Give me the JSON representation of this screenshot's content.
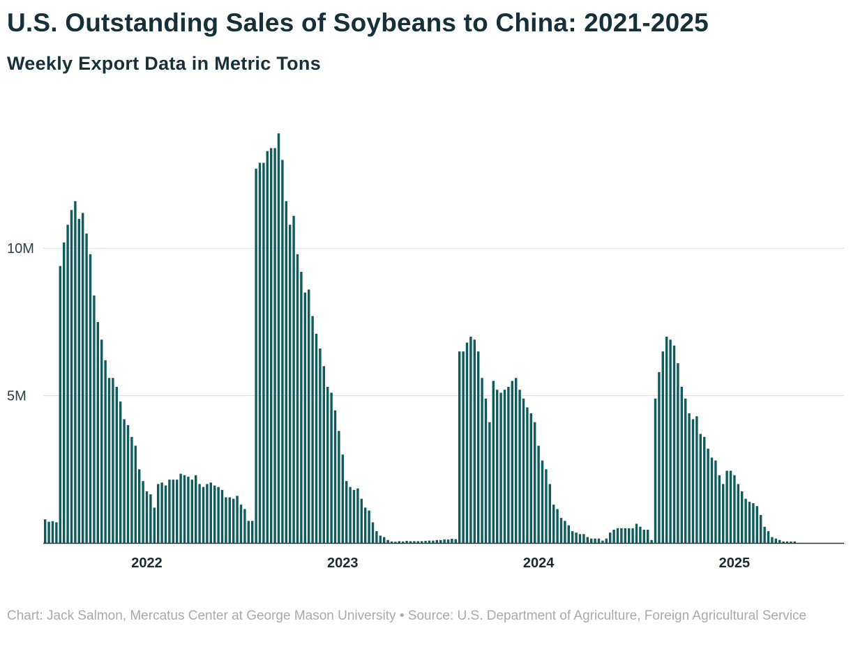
{
  "title": "U.S. Outstanding Sales of Soybeans to China: 2021-2025",
  "subtitle": "Weekly Export Data in Metric Tons",
  "footer": {
    "credit": "Chart: Jack Salmon, Mercatus Center at George Mason University",
    "separator": "•",
    "source": "Source: U.S. Department of Agriculture, Foreign Agricultural Service"
  },
  "colors": {
    "bar": "#0e5c5e",
    "grid": "#d9d9d9",
    "axis": "#333333"
  },
  "chart_data": {
    "type": "bar",
    "title": "U.S. Outstanding Sales of Soybeans to China: 2021-2025",
    "xlabel": "",
    "ylabel": "",
    "ylim": [
      0,
      14500000
    ],
    "y_ticks": [
      {
        "value": 5000000,
        "label": "5M"
      },
      {
        "value": 10000000,
        "label": "10M"
      }
    ],
    "x_ticks": [
      {
        "index": 27,
        "label": "2022"
      },
      {
        "index": 79,
        "label": "2023"
      },
      {
        "index": 131,
        "label": "2024"
      },
      {
        "index": 183,
        "label": "2025"
      }
    ],
    "grid": true,
    "legend": "none",
    "series": [
      {
        "name": "Outstanding sales (metric tons)",
        "values": [
          800000,
          720000,
          740000,
          700000,
          9400000,
          10200000,
          10800000,
          11300000,
          11600000,
          11000000,
          11200000,
          10500000,
          9800000,
          8400000,
          7500000,
          6900000,
          6200000,
          5600000,
          5600000,
          5300000,
          4800000,
          4200000,
          4000000,
          3600000,
          3300000,
          2500000,
          2100000,
          1750000,
          1650000,
          1200000,
          2000000,
          2050000,
          1950000,
          2150000,
          2150000,
          2150000,
          2350000,
          2300000,
          2250000,
          2150000,
          2300000,
          2000000,
          1900000,
          2000000,
          2050000,
          1950000,
          1900000,
          1800000,
          1550000,
          1550000,
          1500000,
          1600000,
          1300000,
          1150000,
          750000,
          750000,
          12700000,
          12900000,
          12900000,
          13300000,
          13400000,
          13400000,
          13900000,
          13000000,
          11600000,
          10800000,
          11100000,
          9800000,
          9200000,
          8500000,
          8600000,
          7700000,
          7100000,
          6600000,
          6000000,
          5300000,
          5100000,
          4500000,
          3800000,
          3000000,
          2100000,
          1900000,
          1800000,
          1850000,
          1500000,
          1200000,
          1100000,
          700000,
          400000,
          250000,
          200000,
          100000,
          50000,
          40000,
          60000,
          50000,
          70000,
          60000,
          60000,
          60000,
          60000,
          70000,
          80000,
          80000,
          100000,
          100000,
          120000,
          120000,
          140000,
          130000,
          6500000,
          6500000,
          6800000,
          7000000,
          6900000,
          6500000,
          5600000,
          4900000,
          4100000,
          5500000,
          5200000,
          5100000,
          5200000,
          5300000,
          5500000,
          5600000,
          5200000,
          4900000,
          4600000,
          4400000,
          4100000,
          3300000,
          2800000,
          2500000,
          2000000,
          1300000,
          1150000,
          850000,
          750000,
          600000,
          400000,
          350000,
          300000,
          300000,
          200000,
          150000,
          150000,
          150000,
          80000,
          150000,
          350000,
          450000,
          500000,
          500000,
          500000,
          500000,
          500000,
          650000,
          550000,
          450000,
          450000,
          100000,
          4900000,
          5800000,
          6500000,
          7000000,
          6900000,
          6700000,
          6100000,
          5300000,
          4900000,
          4400000,
          4200000,
          4300000,
          3700000,
          3600000,
          3200000,
          2900000,
          2800000,
          2300000,
          2000000,
          2450000,
          2450000,
          2300000,
          2000000,
          1750000,
          1500000,
          1400000,
          1350000,
          1250000,
          950000,
          550000,
          400000,
          200000,
          150000,
          100000,
          50000,
          50000,
          50000,
          50000
        ]
      }
    ]
  }
}
